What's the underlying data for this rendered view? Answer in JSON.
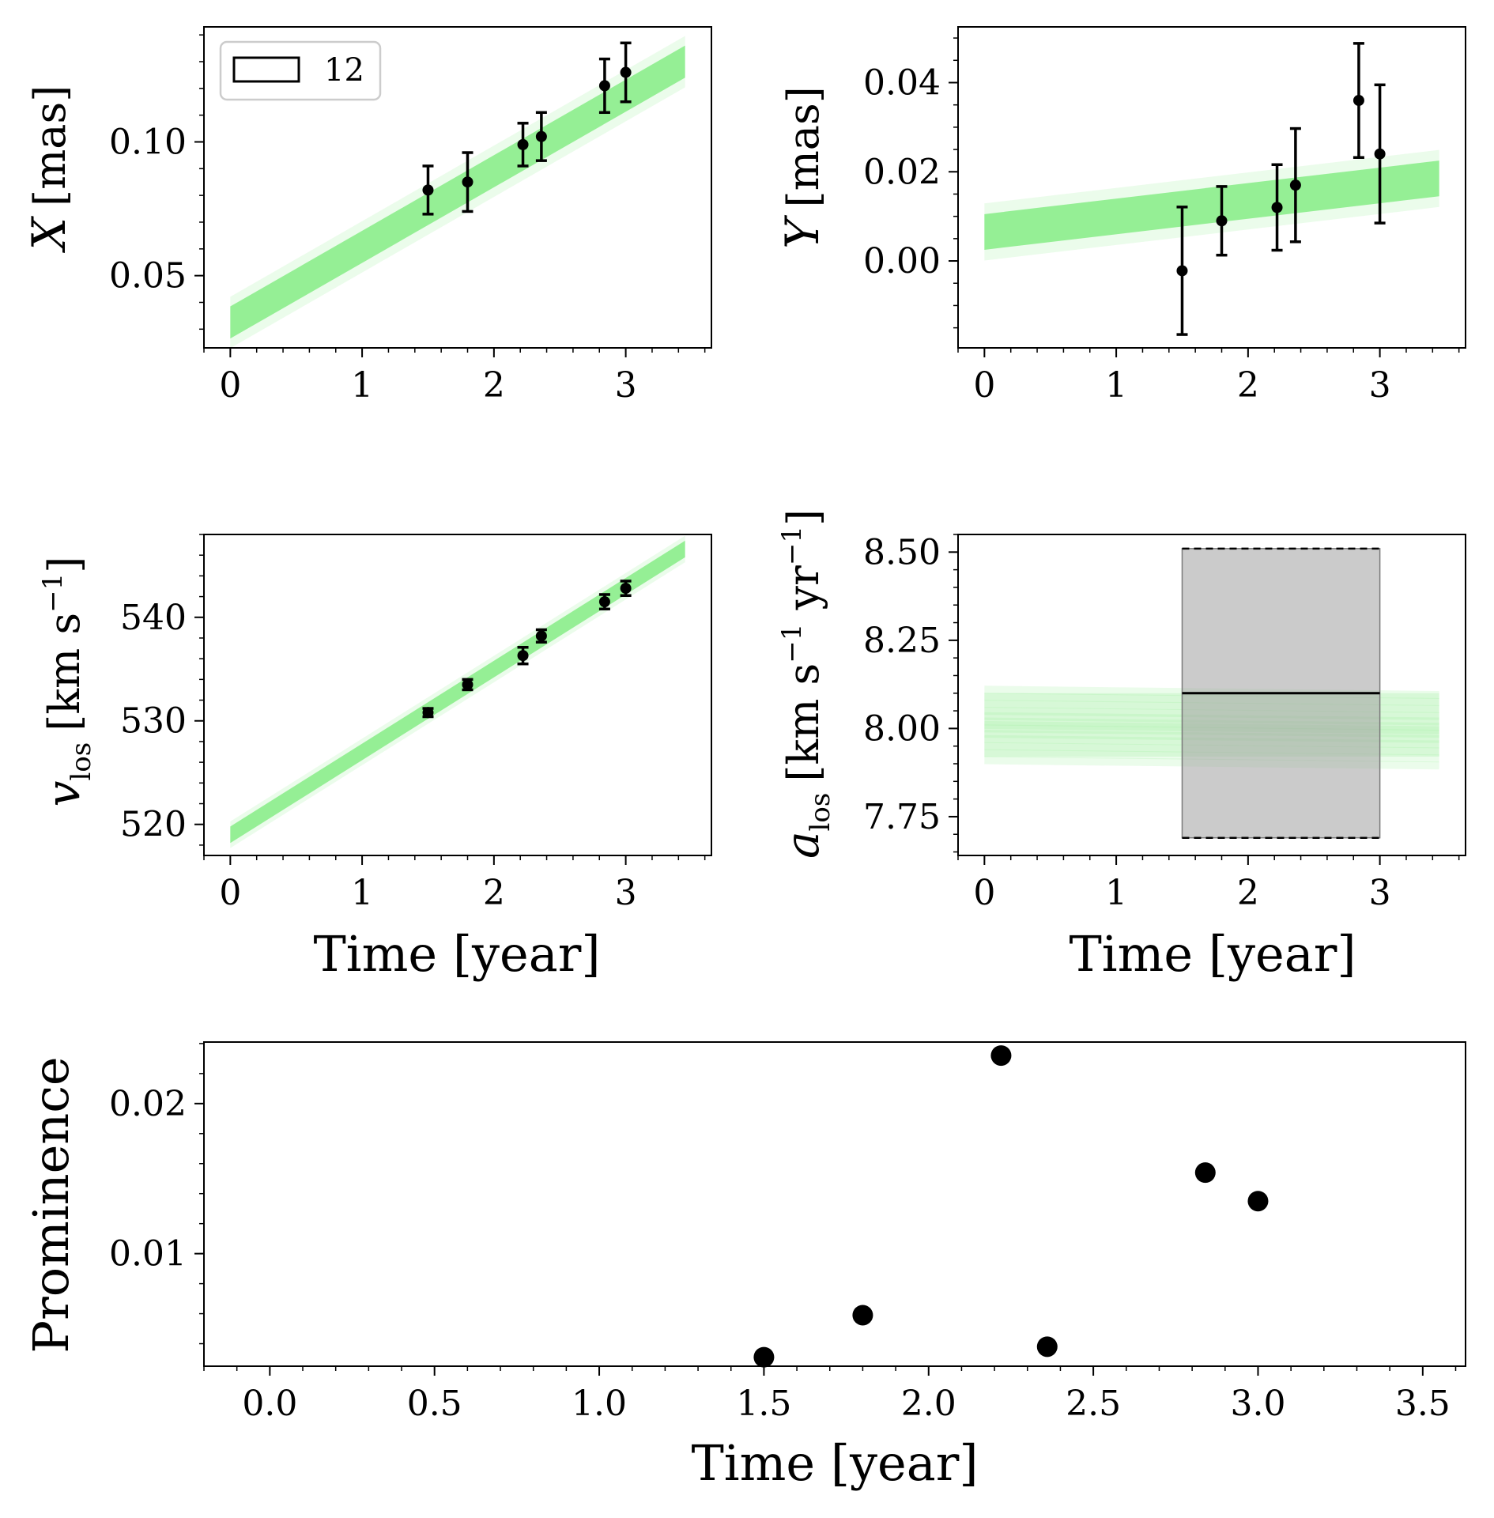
{
  "chart_data": [
    {
      "id": "x",
      "type": "scatter",
      "title": "",
      "xlabel": "",
      "ylabel": "X [mas]",
      "ylabel_math_var": "X",
      "ylabel_unit": "[mas]",
      "xlim": [
        -0.2,
        3.65
      ],
      "ylim": [
        0.023,
        0.143
      ],
      "xticks": [
        0,
        1,
        2,
        3
      ],
      "yticks": [
        0.05,
        0.1
      ],
      "ytick_labels": [
        "0.05",
        "0.10"
      ],
      "points": {
        "x": [
          1.5,
          1.8,
          2.22,
          2.36,
          2.84,
          3.0
        ],
        "y": [
          0.082,
          0.085,
          0.099,
          0.102,
          0.121,
          0.126
        ],
        "err": [
          0.009,
          0.011,
          0.008,
          0.009,
          0.01,
          0.011
        ]
      },
      "fit_band": {
        "x0": 0,
        "x1": 3.45,
        "y0": 0.0325,
        "y1": 0.13,
        "width": 0.006
      },
      "legend": {
        "entries": [
          "12"
        ],
        "loc": "upper-left"
      }
    },
    {
      "id": "y",
      "type": "scatter",
      "title": "",
      "xlabel": "",
      "ylabel": "Y [mas]",
      "ylabel_math_var": "Y",
      "ylabel_unit": "[mas]",
      "xlim": [
        -0.2,
        3.65
      ],
      "ylim": [
        -0.0195,
        0.0525
      ],
      "xticks": [
        0,
        1,
        2,
        3
      ],
      "yticks": [
        0.0,
        0.02,
        0.04
      ],
      "ytick_labels": [
        "0.00",
        "0.02",
        "0.04"
      ],
      "points": {
        "x": [
          1.5,
          1.8,
          2.22,
          2.36,
          2.84,
          3.0
        ],
        "y": [
          -0.0022,
          0.009,
          0.012,
          0.017,
          0.036,
          0.024
        ],
        "err": [
          0.0143,
          0.0077,
          0.0096,
          0.0127,
          0.0128,
          0.0155
        ]
      },
      "fit_band": {
        "x0": 0,
        "x1": 3.45,
        "y0": 0.0065,
        "y1": 0.0185,
        "width": 0.004
      }
    },
    {
      "id": "vlos",
      "type": "scatter",
      "title": "",
      "xlabel": "Time [year]",
      "ylabel": "v_los [km s^-1]",
      "ylabel_math_var": "v",
      "ylabel_sub": "los",
      "ylabel_unit": "[km s",
      "ylabel_sup": "−1",
      "ylabel_tail": "]",
      "xlim": [
        -0.2,
        3.65
      ],
      "ylim": [
        517.0,
        548.0
      ],
      "xticks": [
        0,
        1,
        2,
        3
      ],
      "yticks": [
        520,
        530,
        540
      ],
      "ytick_labels": [
        "520",
        "530",
        "540"
      ],
      "points": {
        "x": [
          1.5,
          1.8,
          2.22,
          2.36,
          2.84,
          3.0
        ],
        "y": [
          530.8,
          533.5,
          536.3,
          538.2,
          541.5,
          542.8
        ],
        "err": [
          0.4,
          0.5,
          0.8,
          0.6,
          0.7,
          0.7
        ]
      },
      "fit_band": {
        "x0": 0,
        "x1": 3.45,
        "y0": 519.0,
        "y1": 546.6,
        "width": 0.8
      }
    },
    {
      "id": "alos",
      "type": "area",
      "title": "",
      "xlabel": "Time [year]",
      "ylabel": "a_los [km s^-1 yr^-1]",
      "ylabel_math_var": "a",
      "ylabel_sub": "los",
      "ylabel_unit": "[km s",
      "ylabel_sup": "−1",
      "ylabel_mid": " yr",
      "ylabel_sup2": "−1",
      "ylabel_tail": "]",
      "xlim": [
        -0.2,
        3.65
      ],
      "ylim": [
        7.64,
        8.55
      ],
      "xticks": [
        0,
        1,
        2,
        3
      ],
      "yticks": [
        7.75,
        8.0,
        8.25,
        8.5
      ],
      "ytick_labels": [
        "7.75",
        "8.00",
        "8.25",
        "8.50"
      ],
      "measured": {
        "x0": 1.5,
        "x1": 3.0,
        "value": 8.1,
        "lower": 7.69,
        "upper": 8.51
      },
      "fit_lines": {
        "x0": 0,
        "x1": 3.45,
        "center": 8.01,
        "spread": 0.1
      }
    },
    {
      "id": "prominence",
      "type": "scatter",
      "title": "",
      "xlabel": "Time [year]",
      "ylabel": "Prominence",
      "xlim": [
        -0.2,
        3.63
      ],
      "ylim": [
        0.0025,
        0.0241
      ],
      "xticks": [
        0.0,
        0.5,
        1.0,
        1.5,
        2.0,
        2.5,
        3.0,
        3.5
      ],
      "xtick_labels": [
        "0.0",
        "0.5",
        "1.0",
        "1.5",
        "2.0",
        "2.5",
        "3.0",
        "3.5"
      ],
      "yticks": [
        0.01,
        0.02
      ],
      "ytick_labels": [
        "0.01",
        "0.02"
      ],
      "points": {
        "x": [
          1.5,
          1.8,
          2.22,
          2.36,
          2.84,
          3.0
        ],
        "y": [
          0.0031,
          0.0059,
          0.0232,
          0.0038,
          0.0154,
          0.0135
        ]
      }
    }
  ],
  "colors": {
    "fit": "#90ee90",
    "marker": "#000000",
    "measurement_fill": "#c8c8c8"
  }
}
